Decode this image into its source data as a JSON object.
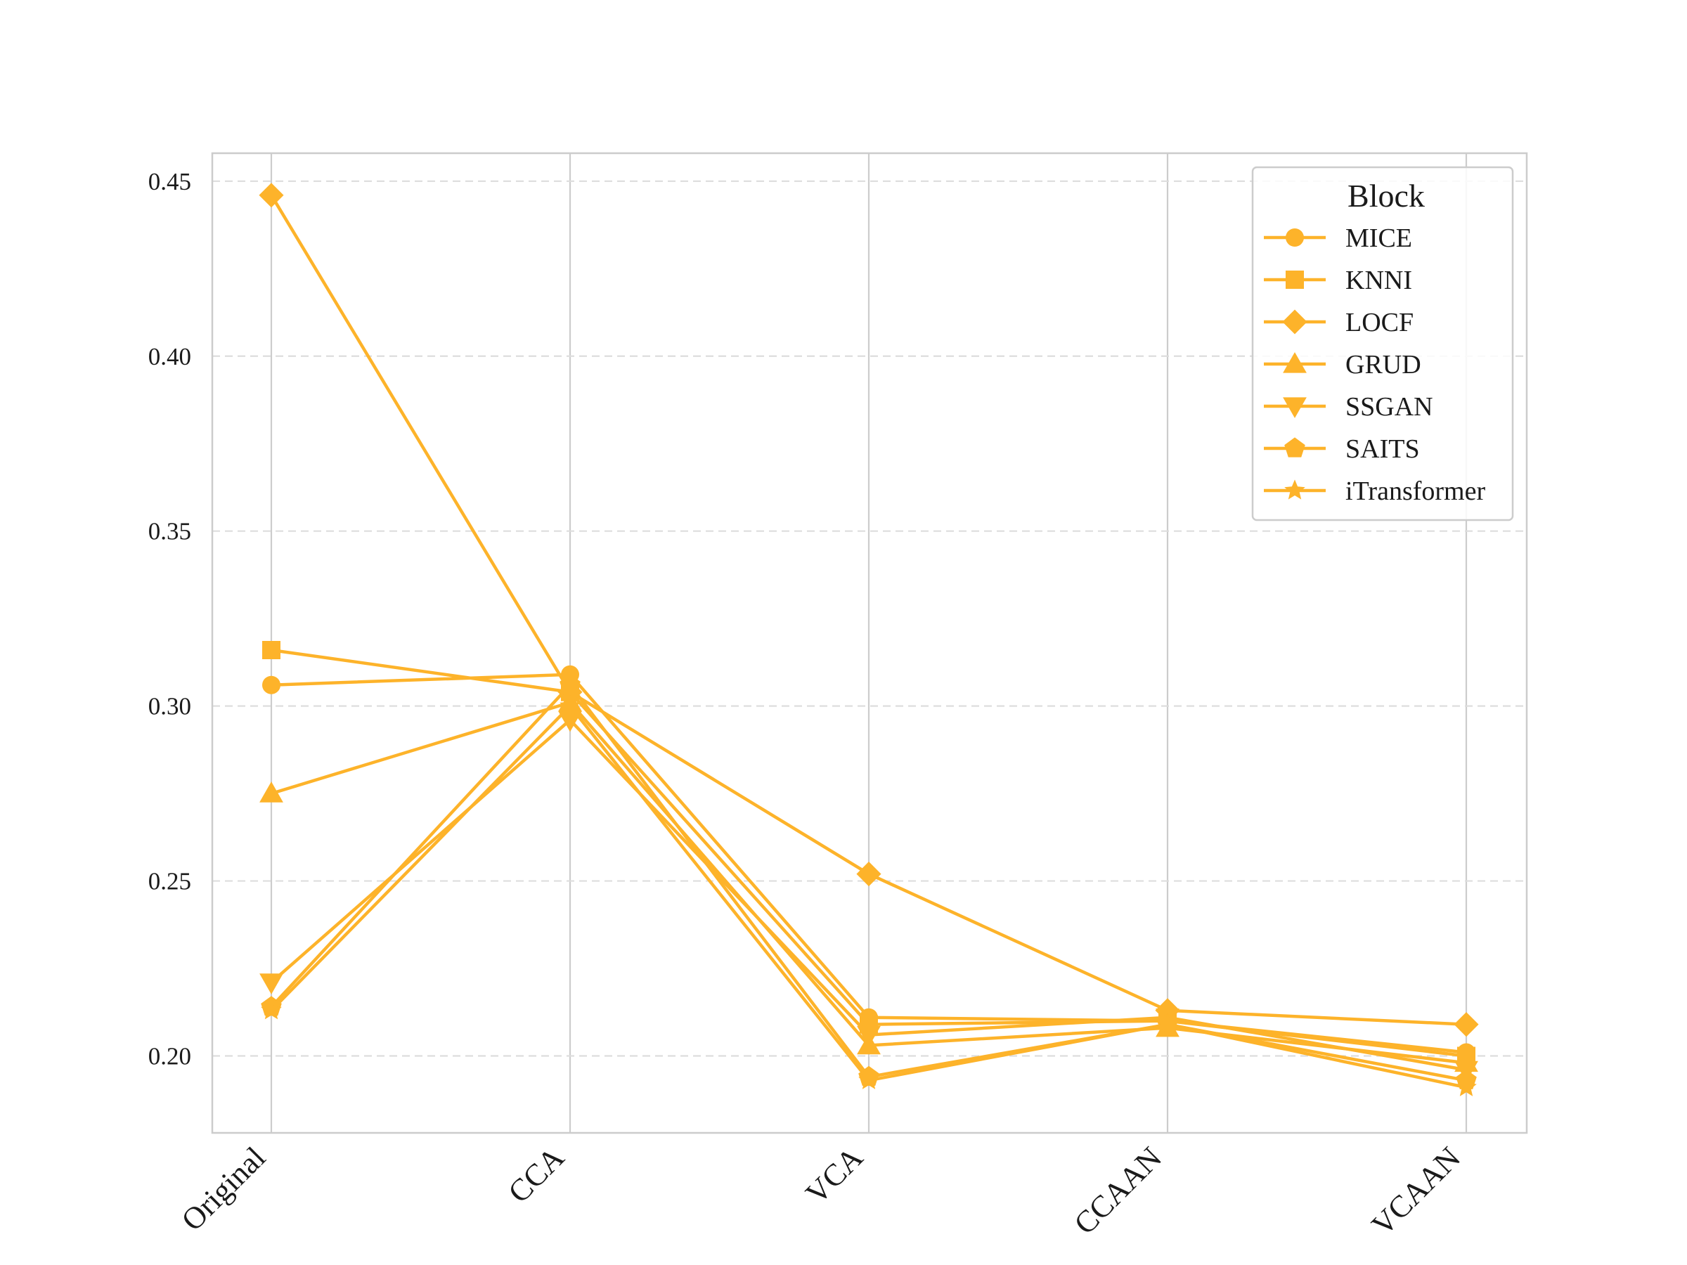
{
  "chart_data": {
    "type": "line",
    "title": "",
    "xlabel": "",
    "ylabel": "",
    "categories": [
      "Original",
      "CCA",
      "VCA",
      "CCAAN",
      "VCAAN"
    ],
    "ylim": [
      0.178,
      0.458
    ],
    "yticks": [
      0.2,
      0.25,
      0.3,
      0.35,
      0.4,
      0.45
    ],
    "ytick_labels": [
      "0.20",
      "0.25",
      "0.30",
      "0.35",
      "0.40",
      "0.45"
    ],
    "grid": {
      "vertical": "solid",
      "horizontal": "dashed"
    },
    "color": "#FDB32A",
    "legend": {
      "title": "Block",
      "placement": "top-right"
    },
    "series": [
      {
        "name": "MICE",
        "marker": "circle",
        "values": [
          0.306,
          0.309,
          0.211,
          0.21,
          0.201
        ]
      },
      {
        "name": "KNNI",
        "marker": "square",
        "values": [
          0.316,
          0.304,
          0.209,
          0.21,
          0.2
        ]
      },
      {
        "name": "LOCF",
        "marker": "diamond",
        "values": [
          0.446,
          0.304,
          0.252,
          0.213,
          0.209
        ]
      },
      {
        "name": "GRUD",
        "marker": "triangle-up",
        "values": [
          0.275,
          0.301,
          0.203,
          0.208,
          0.198
        ]
      },
      {
        "name": "SSGAN",
        "marker": "triangle-down",
        "values": [
          0.221,
          0.296,
          0.206,
          0.211,
          0.196
        ]
      },
      {
        "name": "SAITS",
        "marker": "pentagon",
        "values": [
          0.214,
          0.306,
          0.194,
          0.209,
          0.193
        ]
      },
      {
        "name": "iTransformer",
        "marker": "star",
        "values": [
          0.213,
          0.3,
          0.193,
          0.209,
          0.191
        ]
      }
    ]
  }
}
